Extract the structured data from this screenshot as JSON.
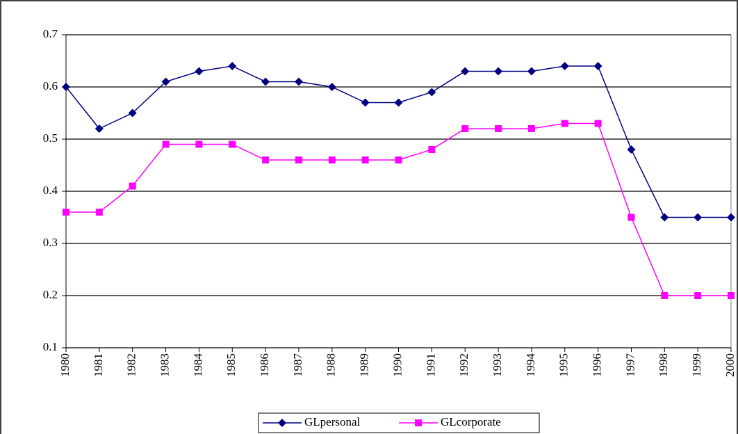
{
  "chart_data": {
    "type": "line",
    "categories": [
      "1980",
      "1981",
      "1982",
      "1983",
      "1984",
      "1985",
      "1986",
      "1987",
      "1988",
      "1989",
      "1990",
      "1991",
      "1992",
      "1993",
      "1994",
      "1995",
      "1996",
      "1997",
      "1998",
      "1999",
      "2000"
    ],
    "series": [
      {
        "name": "GLpersonal",
        "color": "#000080",
        "marker": "diamond",
        "values": [
          0.6,
          0.52,
          0.55,
          0.61,
          0.63,
          0.64,
          0.61,
          0.61,
          0.6,
          0.57,
          0.57,
          0.59,
          0.63,
          0.63,
          0.63,
          0.64,
          0.64,
          0.48,
          0.35,
          0.35,
          0.35
        ]
      },
      {
        "name": "GLcorporate",
        "color": "#ff00ff",
        "marker": "square",
        "values": [
          0.36,
          0.36,
          0.41,
          0.49,
          0.49,
          0.49,
          0.46,
          0.46,
          0.46,
          0.46,
          0.46,
          0.48,
          0.52,
          0.52,
          0.52,
          0.53,
          0.53,
          0.35,
          0.2,
          0.2,
          0.2
        ]
      }
    ],
    "ylim": [
      0.1,
      0.7
    ],
    "yticks": [
      0.1,
      0.2,
      0.3,
      0.4,
      0.5,
      0.6,
      0.7
    ],
    "grid": true,
    "legend": "bottom"
  }
}
